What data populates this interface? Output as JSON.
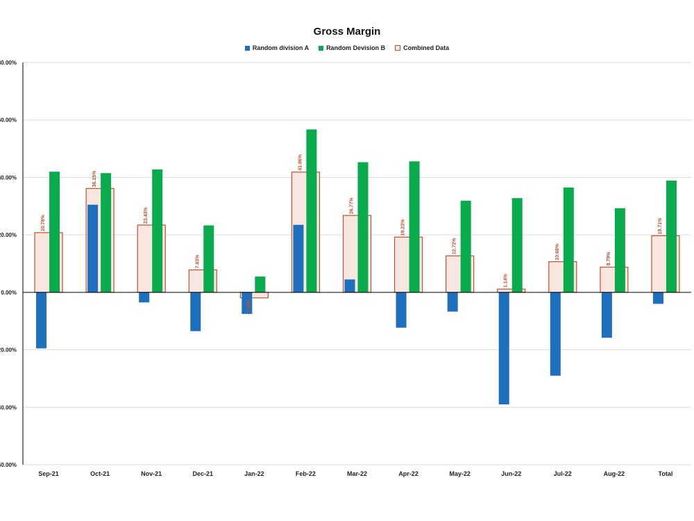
{
  "chart_data": {
    "type": "bar",
    "title": "Gross Margin",
    "xlabel": "",
    "ylabel": "",
    "ylim": [
      -60,
      80
    ],
    "yticks": [
      "-60.00%",
      "-40.00%",
      "-20.00%",
      "0.00%",
      "20.00%",
      "40.00%",
      "60.00%",
      "80.00%"
    ],
    "ytick_values": [
      -60,
      -40,
      -20,
      0,
      20,
      40,
      60,
      80
    ],
    "grid": true,
    "legend_position": "top-center",
    "categories": [
      "Sep-21",
      "Oct-21",
      "Nov-21",
      "Dec-21",
      "Jan-22",
      "Feb-22",
      "Mar-22",
      "Apr-22",
      "May-22",
      "Jun-22",
      "Jul-22",
      "Aug-22",
      "Total"
    ],
    "series": [
      {
        "name": "Random division A",
        "color": "#1f6fbf",
        "values": [
          -19.5,
          30.5,
          -3.5,
          -13.5,
          -7.5,
          23.5,
          4.5,
          -12.3,
          -6.7,
          -39.0,
          -29.0,
          -15.8,
          -4.0
        ]
      },
      {
        "name": "Random Devision B",
        "color": "#0aab4c",
        "values": [
          42.0,
          41.5,
          42.8,
          23.3,
          5.5,
          56.7,
          45.3,
          45.6,
          31.9,
          32.8,
          36.5,
          29.3,
          38.9
        ]
      },
      {
        "name": "Combined Data",
        "color": "#f8e6e1",
        "border": "#c0502a",
        "values": [
          20.78,
          36.15,
          23.43,
          7.83,
          -1.92,
          41.86,
          26.77,
          19.23,
          12.72,
          1.14,
          10.68,
          8.79,
          19.71
        ],
        "labels": [
          "20.78%",
          "36.15%",
          "23.43%",
          "7.83%",
          "-1.92%",
          "41.86%",
          "26.77%",
          "19.23%",
          "12.72%",
          "1.14%",
          "10.68%",
          "8.79%",
          "19.71%"
        ]
      }
    ]
  }
}
